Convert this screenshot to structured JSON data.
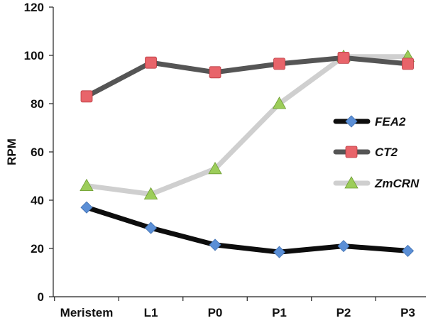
{
  "chart_data": {
    "type": "line",
    "categories": [
      "Meristem",
      "L1",
      "P0",
      "P1",
      "P2",
      "P3"
    ],
    "ylabel": "RPM",
    "xlabel": "",
    "ylim": [
      0,
      120
    ],
    "yticks": [
      0,
      20,
      40,
      60,
      80,
      100,
      120
    ],
    "grid": false,
    "legend_position": "right",
    "series": [
      {
        "name": "FEA2",
        "values": [
          37,
          28.5,
          21.5,
          18.5,
          21,
          19
        ],
        "line_color": "#0d0d0d",
        "marker": "diamond",
        "marker_color": "#5b8fd6"
      },
      {
        "name": "CT2",
        "values": [
          83,
          97,
          93,
          96.5,
          99,
          96.5
        ],
        "line_color": "#555555",
        "marker": "square",
        "marker_color": "#e8646a"
      },
      {
        "name": "ZmCRN",
        "values": [
          46,
          42.5,
          53,
          80,
          99.5,
          99.5
        ],
        "line_color": "#cfcfcf",
        "marker": "triangle",
        "marker_color": "#9ccd5a"
      }
    ]
  }
}
